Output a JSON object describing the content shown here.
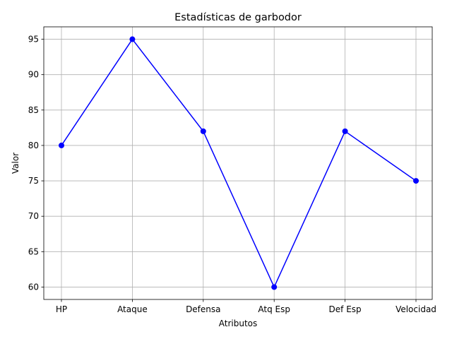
{
  "chart_data": {
    "type": "line",
    "title": "Estadísticas de garbodor",
    "xlabel": "Atributos",
    "ylabel": "Valor",
    "categories": [
      "HP",
      "Ataque",
      "Defensa",
      "Atq Esp",
      "Def Esp",
      "Velocidad"
    ],
    "series": [
      {
        "values": [
          80,
          95,
          82,
          60,
          82,
          75
        ],
        "color": "#0000ff",
        "marker": "circle"
      }
    ],
    "ylim": [
      58.25,
      96.75
    ],
    "yticks": [
      60,
      65,
      70,
      75,
      80,
      85,
      90,
      95
    ],
    "grid": true
  }
}
